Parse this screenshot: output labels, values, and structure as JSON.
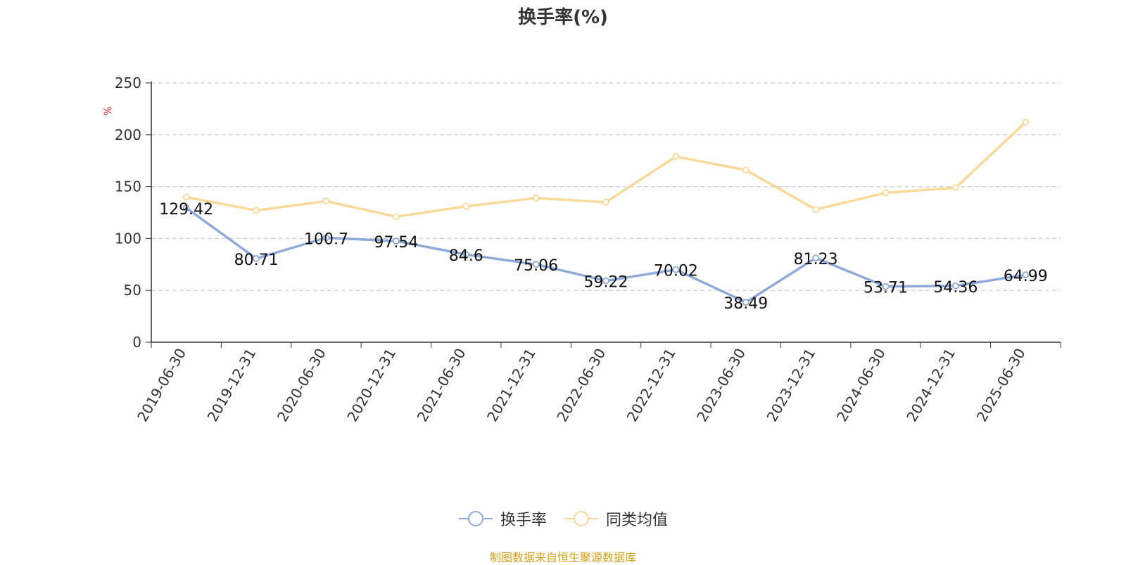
{
  "chart_data": {
    "type": "line",
    "title": "换手率(%)",
    "ylabel": "%",
    "ylim": [
      0,
      250
    ],
    "yticks": [
      0,
      50,
      100,
      150,
      200,
      250
    ],
    "categories": [
      "2019-06-30",
      "2019-12-31",
      "2020-06-30",
      "2020-12-31",
      "2021-06-30",
      "2021-12-31",
      "2022-06-30",
      "2022-12-31",
      "2023-06-30",
      "2023-12-31",
      "2024-06-30",
      "2024-12-31",
      "2025-06-30"
    ],
    "grid": true,
    "legend_position": "bottom-center",
    "series": [
      {
        "name": "换手率",
        "color": "#8eaad8",
        "values": [
          129.42,
          80.71,
          100.7,
          97.54,
          84.6,
          75.06,
          59.22,
          70.02,
          38.49,
          81.23,
          53.71,
          54.36,
          64.99
        ],
        "labels": [
          "129.42",
          "80.71",
          "100.7",
          "97.54",
          "84.6",
          "75.06",
          "59.22",
          "70.02",
          "38.49",
          "81.23",
          "53.71",
          "54.36",
          "64.99"
        ],
        "show_labels": true
      },
      {
        "name": "同类均值",
        "color": "#f9d99a",
        "values": [
          140,
          127,
          136,
          121,
          131,
          139,
          135,
          179,
          166,
          128,
          144,
          149,
          212
        ],
        "show_labels": false
      }
    ]
  },
  "source_note": "制图数据来自恒生聚源数据库"
}
